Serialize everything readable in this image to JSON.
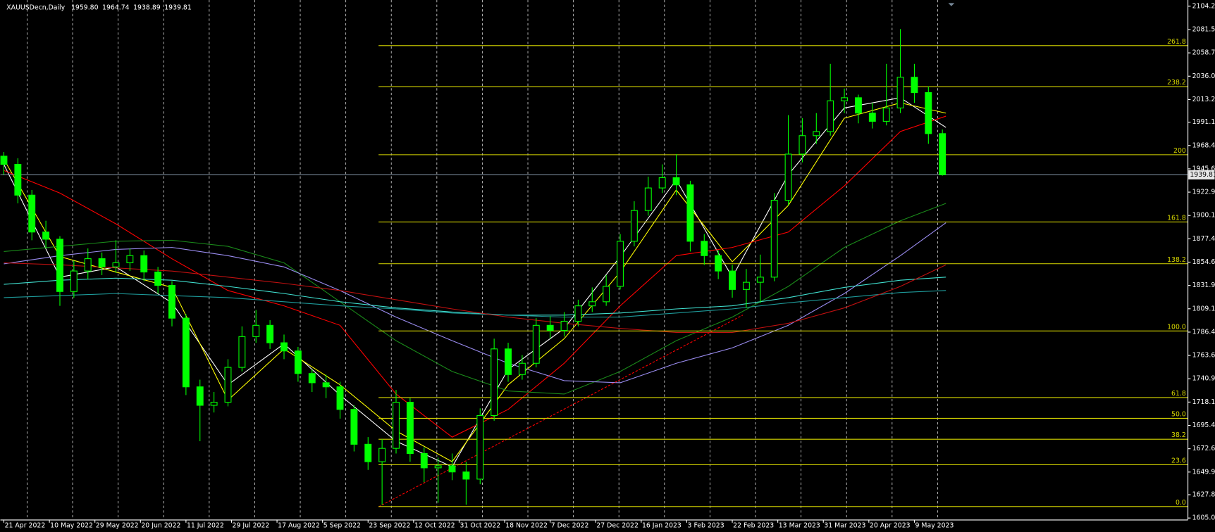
{
  "chart_data": {
    "type": "candlestick",
    "symbol": "XAUUSDecn,Daily",
    "quote": [
      "1959.80",
      "1964.74",
      "1938.89",
      "1939.81"
    ],
    "bid": 1939.81,
    "bid_color": "#778899",
    "grid": true,
    "xlim": [
      -1,
      338
    ],
    "ylim": [
      1603.5,
      2107.3
    ],
    "xticks": [
      {
        "value": 0,
        "label": "21 Apr 2022"
      },
      {
        "value": 13,
        "label": "10 May 2022"
      },
      {
        "value": 26,
        "label": "29 May 2022"
      },
      {
        "value": 39,
        "label": "20 Jun 2022"
      },
      {
        "value": 52,
        "label": "11 Jul 2022"
      },
      {
        "value": 65,
        "label": "29 Jul 2022"
      },
      {
        "value": 78,
        "label": "17 Aug 2022"
      },
      {
        "value": 91,
        "label": "5 Sep 2022"
      },
      {
        "value": 104,
        "label": "23 Sep 2022"
      },
      {
        "value": 117,
        "label": "12 Oct 2022"
      },
      {
        "value": 130,
        "label": "31 Oct 2022"
      },
      {
        "value": 143,
        "label": "18 Nov 2022"
      },
      {
        "value": 156,
        "label": "7 Dec 2022"
      },
      {
        "value": 169,
        "label": "27 Dec 2022"
      },
      {
        "value": 182,
        "label": "16 Jan 2023"
      },
      {
        "value": 195,
        "label": "3 Feb 2023"
      },
      {
        "value": 208,
        "label": "22 Feb 2023"
      },
      {
        "value": 221,
        "label": "13 Mar 2023"
      },
      {
        "value": 234,
        "label": "31 Mar 2023"
      },
      {
        "value": 247,
        "label": "20 Apr 2023"
      },
      {
        "value": 260,
        "label": "9 May 2023"
      }
    ],
    "yticks": [
      2104.25,
      {
        "value": 2081.5,
        "label": "2081.50"
      },
      2058.75,
      {
        "value": 2036,
        "label": "2036.00"
      },
      2013.25,
      1991.15,
      {
        "value": 1968.4,
        "label": "1968.40"
      },
      1945.65,
      {
        "value": 1922.9,
        "label": "1922.90"
      },
      1900.15,
      {
        "value": 1877.4,
        "label": "1877.40"
      },
      1854.65,
      {
        "value": 1831.9,
        "label": "1831.90"
      },
      1809.15,
      {
        "value": 1786.4,
        "label": "1786.40"
      },
      1763.65,
      {
        "value": 1740.9,
        "label": "1740.90"
      },
      1718.15,
      {
        "value": 1695.4,
        "label": "1695.40"
      },
      1672.65,
      {
        "value": 1649.9,
        "label": "1649.90"
      },
      {
        "value": 1627.8,
        "label": "1627.80"
      },
      1605.05
    ],
    "candles": {
      "color": "#00ff00",
      "x": [
        0,
        4,
        8,
        12,
        16,
        20,
        24,
        28,
        32,
        36,
        40,
        44,
        48,
        52,
        56,
        60,
        64,
        68,
        72,
        76,
        80,
        84,
        88,
        92,
        96,
        100,
        104,
        108,
        112,
        116,
        120,
        124,
        128,
        132,
        136,
        140,
        144,
        148,
        152,
        156,
        160,
        164,
        168,
        172,
        176,
        180,
        184,
        188,
        192,
        196,
        200,
        204,
        208,
        212,
        216,
        220,
        224,
        228,
        232,
        236,
        240,
        244,
        248,
        252,
        256,
        260,
        264,
        268
      ],
      "open": [
        1958,
        1950,
        1920,
        1884,
        1877,
        1826,
        1846,
        1858,
        1850,
        1854,
        1861,
        1845,
        1832,
        1800,
        1733,
        1715,
        1718,
        1752,
        1782,
        1793,
        1776,
        1768,
        1746,
        1737,
        1733,
        1711,
        1677,
        1660,
        1673,
        1718,
        1668,
        1654,
        1656,
        1650,
        1643,
        1705,
        1770,
        1745,
        1756,
        1793,
        1788,
        1797,
        1812,
        1816,
        1831,
        1875,
        1905,
        1927,
        1937,
        1930,
        1875,
        1861,
        1846,
        1828,
        1835,
        1840,
        1915,
        1960,
        1978,
        1982,
        2012,
        2015,
        2000,
        1992,
        2005,
        2035,
        2020,
        1980
      ],
      "high": [
        1962,
        1956,
        1925,
        1895,
        1880,
        1856,
        1868,
        1864,
        1876,
        1868,
        1866,
        1850,
        1836,
        1804,
        1740,
        1728,
        1760,
        1792,
        1808,
        1798,
        1784,
        1772,
        1750,
        1745,
        1738,
        1715,
        1684,
        1682,
        1730,
        1722,
        1674,
        1664,
        1668,
        1660,
        1712,
        1780,
        1776,
        1764,
        1800,
        1802,
        1806,
        1818,
        1830,
        1842,
        1882,
        1914,
        1938,
        1950,
        1960,
        1934,
        1882,
        1866,
        1852,
        1848,
        1862,
        1922,
        1998,
        1995,
        2000,
        2048,
        2024,
        2018,
        2010,
        2048,
        2082,
        2048,
        2026,
        1984
      ],
      "low": [
        1940,
        1912,
        1876,
        1868,
        1812,
        1820,
        1838,
        1842,
        1844,
        1846,
        1836,
        1824,
        1792,
        1725,
        1680,
        1708,
        1714,
        1748,
        1776,
        1770,
        1760,
        1738,
        1728,
        1722,
        1702,
        1670,
        1652,
        1618,
        1668,
        1660,
        1640,
        1620,
        1642,
        1618,
        1638,
        1700,
        1738,
        1740,
        1752,
        1780,
        1782,
        1792,
        1806,
        1812,
        1828,
        1870,
        1900,
        1922,
        1920,
        1865,
        1852,
        1838,
        1820,
        1810,
        1815,
        1836,
        1910,
        1952,
        1970,
        1978,
        2000,
        1990,
        1985,
        1988,
        2000,
        2010,
        1970,
        1939
      ],
      "close": [
        1950,
        1920,
        1884,
        1877,
        1826,
        1846,
        1858,
        1850,
        1854,
        1861,
        1845,
        1832,
        1800,
        1733,
        1715,
        1718,
        1752,
        1782,
        1793,
        1776,
        1768,
        1746,
        1737,
        1733,
        1711,
        1677,
        1660,
        1673,
        1718,
        1668,
        1654,
        1656,
        1650,
        1643,
        1705,
        1770,
        1745,
        1756,
        1793,
        1788,
        1797,
        1812,
        1816,
        1831,
        1875,
        1905,
        1927,
        1937,
        1930,
        1875,
        1861,
        1846,
        1828,
        1835,
        1840,
        1915,
        1960,
        1978,
        1982,
        2012,
        2015,
        2000,
        1992,
        2005,
        2035,
        2020,
        1980,
        1940
      ]
    },
    "moving_averages": {
      "x": [
        0,
        16,
        32,
        48,
        64,
        80,
        96,
        112,
        128,
        144,
        160,
        176,
        192,
        208,
        224,
        240,
        256,
        269
      ],
      "series": [
        {
          "color": "#ffffff",
          "values": [
            1950,
            1840,
            1850,
            1815,
            1735,
            1775,
            1725,
            1680,
            1655,
            1750,
            1790,
            1860,
            1935,
            1840,
            1940,
            2005,
            2015,
            1986
          ]
        },
        {
          "color": "#ffff00",
          "values": [
            1955,
            1860,
            1845,
            1830,
            1720,
            1770,
            1735,
            1690,
            1660,
            1735,
            1780,
            1845,
            1925,
            1855,
            1910,
            1995,
            2010,
            2000
          ]
        },
        {
          "color": "#ff0000",
          "values": [
            1944,
            1922,
            1892,
            1858,
            1827,
            1812,
            1793,
            1726,
            1684,
            1711,
            1756,
            1812,
            1861,
            1869,
            1884,
            1929,
            1982,
            1997
          ]
        },
        {
          "color": "#1a8a1a",
          "values": [
            1865,
            1870,
            1875,
            1876,
            1870,
            1854,
            1816,
            1778,
            1748,
            1729,
            1726,
            1748,
            1778,
            1801,
            1831,
            1869,
            1895,
            1912
          ]
        },
        {
          "color": "#9a8cf0",
          "values": [
            1853,
            1861,
            1867,
            1869,
            1861,
            1850,
            1827,
            1801,
            1778,
            1756,
            1739,
            1737,
            1756,
            1771,
            1793,
            1824,
            1861,
            1893
          ]
        },
        {
          "color": "#40e0d0",
          "values": [
            1833,
            1837,
            1839,
            1837,
            1831,
            1824,
            1816,
            1810,
            1806,
            1803,
            1803,
            1805,
            1809,
            1812,
            1820,
            1830,
            1837,
            1840
          ]
        },
        {
          "color": "#1e9a9a",
          "values": [
            1820,
            1822,
            1824,
            1822,
            1820,
            1816,
            1812,
            1809,
            1805,
            1803,
            1801,
            1801,
            1805,
            1809,
            1815,
            1820,
            1825,
            1827
          ]
        },
        {
          "color": "#c01010",
          "values": [
            1854,
            1852,
            1849,
            1846,
            1840,
            1834,
            1827,
            1818,
            1809,
            1801,
            1795,
            1790,
            1786,
            1786,
            1795,
            1810,
            1831,
            1852
          ]
        }
      ]
    },
    "trendline": {
      "color": "#ff0000",
      "x": [
        107,
        211
      ],
      "y": [
        1616,
        1803
      ]
    },
    "fibo": {
      "color": "#d8d800",
      "x_start": 107,
      "levels": [
        {
          "label": "261.8",
          "price": 2065.8
        },
        {
          "label": "238.2",
          "price": 2025.8
        },
        {
          "label": "200",
          "price": 1959.4
        },
        {
          "label": "161.8",
          "price": 1893.8
        },
        {
          "label": "138.2",
          "price": 1853.1
        },
        {
          "label": "100.0",
          "price": 1787.5
        },
        {
          "label": "61.8",
          "price": 1722.6
        },
        {
          "label": "50.0",
          "price": 1702.3
        },
        {
          "label": "38.2",
          "price": 1681.9
        },
        {
          "label": "23.6",
          "price": 1657.0
        },
        {
          "label": "0.0",
          "price": 1616.3
        }
      ]
    }
  }
}
